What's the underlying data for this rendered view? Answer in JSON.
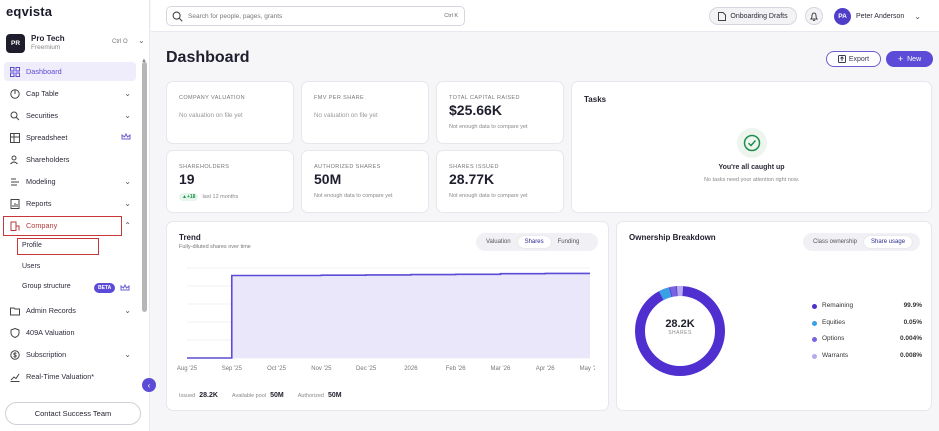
{
  "app": {
    "logo": "eqvista"
  },
  "org": {
    "initials": "PR",
    "name": "Pro Tech",
    "plan": "Freemium",
    "shortcut": "Ctrl O"
  },
  "sidebar": {
    "items": [
      {
        "label": "Dashboard",
        "icon": "grid-icon"
      },
      {
        "label": "Cap Table",
        "icon": "pie-icon"
      },
      {
        "label": "Securities",
        "icon": "securities-icon"
      },
      {
        "label": "Spreadsheet",
        "icon": "spreadsheet-icon"
      },
      {
        "label": "Shareholders",
        "icon": "people-icon"
      },
      {
        "label": "Modeling",
        "icon": "modeling-icon"
      },
      {
        "label": "Reports",
        "icon": "reports-icon"
      },
      {
        "label": "Company",
        "icon": "company-icon"
      },
      {
        "label": "Admin Records",
        "icon": "folder-icon"
      },
      {
        "label": "409A Valuation",
        "icon": "shield-icon"
      },
      {
        "label": "Subscription",
        "icon": "dollar-icon"
      },
      {
        "label": "Real-Time Valuation*",
        "icon": "chart-icon"
      }
    ],
    "company_sub": [
      "Profile",
      "Users",
      "Group structure"
    ],
    "beta_label": "BETA",
    "contact_label": "Contact Success Team"
  },
  "topbar": {
    "search_placeholder": "Search for people, pages, grants",
    "search_shortcut": "Ctrl K",
    "drafts_label": "Onboarding Drafts",
    "user_initials": "PA",
    "user_name": "Peter Anderson"
  },
  "page": {
    "title": "Dashboard",
    "export_label": "Export",
    "new_label": "New"
  },
  "stats": {
    "company_valuation": {
      "label": "COMPANY VALUATION",
      "sub": "No valuation on file yet"
    },
    "fmv": {
      "label": "FMV PER SHARE",
      "sub": "No valuation on file yet"
    },
    "capital": {
      "label": "TOTAL CAPITAL RAISED",
      "value": "$25.66K",
      "sub": "Not enough data to compare yet"
    },
    "shareholders": {
      "label": "SHAREHOLDERS",
      "value": "19",
      "delta": "▲+18",
      "sub": "last 12 months"
    },
    "authorized": {
      "label": "AUTHORIZED SHARES",
      "value": "50M",
      "sub": "Not enough data to compare yet"
    },
    "issued": {
      "label": "SHARES ISSUED",
      "value": "28.77K",
      "sub": "Not enough data to compare yet"
    }
  },
  "tasks": {
    "title": "Tasks",
    "main": "You're all caught up",
    "sub": "No tasks need your attention right now."
  },
  "trend": {
    "title": "Trend",
    "subtitle": "Fully-diluted shares over time",
    "tabs": [
      "Valuation",
      "Shares",
      "Funding"
    ],
    "active_tab": "Shares",
    "footer": {
      "issued_label": "Issued",
      "issued_value": "28.2K",
      "pool_label": "Available pool",
      "pool_value": "50M",
      "auth_label": "Authorized",
      "auth_value": "50M"
    }
  },
  "ownership": {
    "title": "Ownership Breakdown",
    "tabs": [
      "Class ownership",
      "Share usage"
    ],
    "active_tab": "Share usage",
    "center_value": "28.2K",
    "center_label": "SHARES",
    "legend": [
      {
        "name": "Remaining",
        "value": "99.9%",
        "color": "#4f2fd0"
      },
      {
        "name": "Equities",
        "value": "0.05%",
        "color": "#3aa0e6"
      },
      {
        "name": "Options",
        "value": "0.004%",
        "color": "#7a63e0"
      },
      {
        "name": "Warrants",
        "value": "0.008%",
        "color": "#b9a9ee"
      }
    ]
  },
  "chart_data": [
    {
      "type": "area",
      "title": "Trend",
      "subtitle": "Fully-diluted shares over time",
      "x": [
        "Aug '25",
        "Sep '25",
        "Oct '25",
        "Nov '25",
        "Dec '25",
        "2026",
        "Feb '26",
        "Mar '26",
        "Apr '26",
        "May '26"
      ],
      "series": [
        {
          "values": [
            0,
            27500,
            27500,
            27600,
            27700,
            27800,
            27900,
            28100,
            28200,
            28200
          ]
        }
      ],
      "grid": true,
      "color": "#5b4bd6"
    },
    {
      "type": "pie",
      "title": "Ownership Breakdown",
      "categories": [
        "Remaining",
        "Equities",
        "Options",
        "Warrants"
      ],
      "values": [
        99.9,
        0.05,
        0.004,
        0.008
      ]
    }
  ]
}
